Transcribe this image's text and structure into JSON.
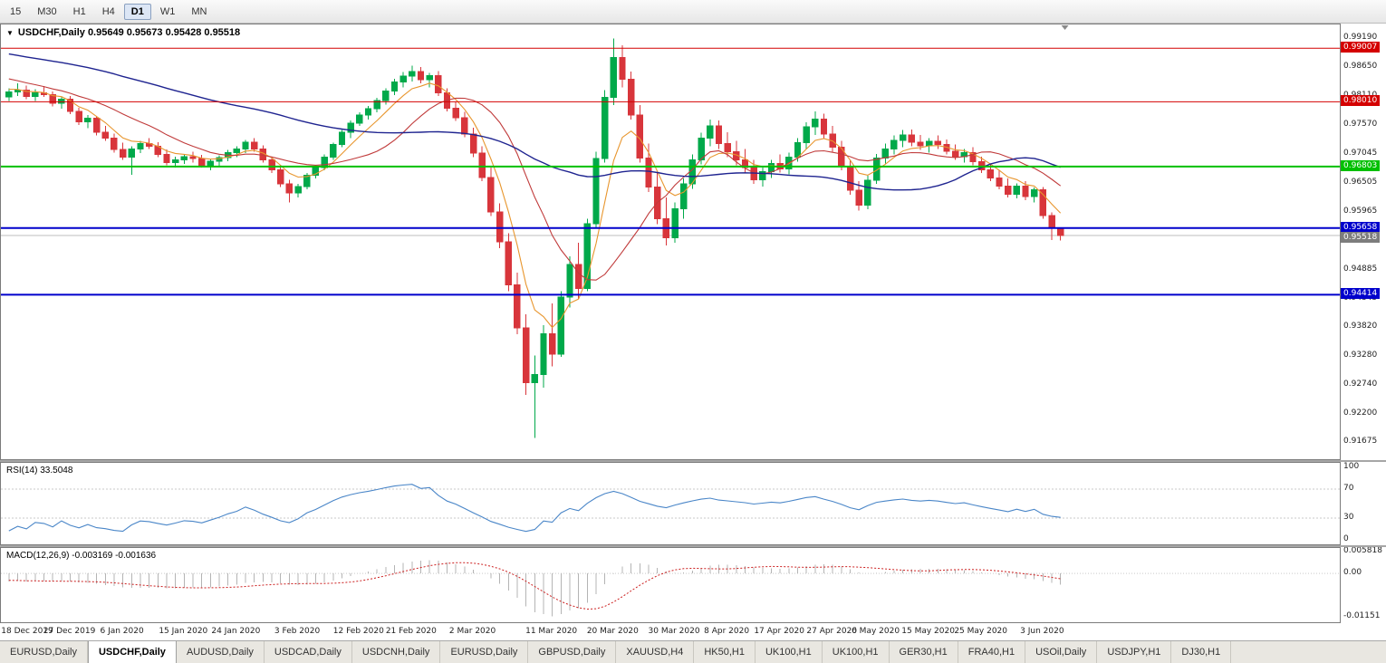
{
  "toolbar": {
    "timeframes": [
      {
        "label": "15",
        "active": false
      },
      {
        "label": "M30",
        "active": false
      },
      {
        "label": "H1",
        "active": false
      },
      {
        "label": "H4",
        "active": false
      },
      {
        "label": "D1",
        "active": true
      },
      {
        "label": "W1",
        "active": false
      },
      {
        "label": "MN",
        "active": false
      }
    ]
  },
  "chart": {
    "header": "USDCHF,Daily 0.95649 0.95673 0.95428 0.95518"
  },
  "rsi": {
    "title": "RSI(14) 33.5048"
  },
  "macd": {
    "title": "MACD(12,26,9) -0.003169 -0.001636"
  },
  "tabs": [
    {
      "label": "EURUSD,Daily",
      "active": false
    },
    {
      "label": "USDCHF,Daily",
      "active": true
    },
    {
      "label": "AUDUSD,Daily",
      "active": false
    },
    {
      "label": "USDCAD,Daily",
      "active": false
    },
    {
      "label": "USDCNH,Daily",
      "active": false
    },
    {
      "label": "EURUSD,Daily",
      "active": false
    },
    {
      "label": "GBPUSD,Daily",
      "active": false
    },
    {
      "label": "XAUUSD,H4",
      "active": false
    },
    {
      "label": "HK50,H1",
      "active": false
    },
    {
      "label": "UK100,H1",
      "active": false
    },
    {
      "label": "UK100,H1",
      "active": false
    },
    {
      "label": "GER30,H1",
      "active": false
    },
    {
      "label": "FRA40,H1",
      "active": false
    },
    {
      "label": "USOil,Daily",
      "active": false
    },
    {
      "label": "USDJPY,H1",
      "active": false
    },
    {
      "label": "DJ30,H1",
      "active": false
    }
  ],
  "chart_data": {
    "type": "candlestick",
    "symbol": "USDCHF",
    "timeframe": "Daily",
    "ohlc_display": {
      "open": "0.95649",
      "high": "0.95673",
      "low": "0.95428",
      "close": "0.95518"
    },
    "price_range": [
      0.9135,
      0.9945
    ],
    "candle_up_color": "#00A94A",
    "candle_down_color": "#D8353B",
    "y_axis_labels": [
      "0.99190",
      "0.98650",
      "0.98110",
      "0.97570",
      "0.97045",
      "0.96505",
      "0.95965",
      "0.95425",
      "0.94885",
      "0.94345",
      "0.93820",
      "0.93280",
      "0.92740",
      "0.92200",
      "0.91675"
    ],
    "x_labels": [
      {
        "i": 0,
        "t": "18 Dec 2019"
      },
      {
        "i": 7,
        "t": "27 Dec 2019"
      },
      {
        "i": 13,
        "t": "6 Jan 2020"
      },
      {
        "i": 20,
        "t": "15 Jan 2020"
      },
      {
        "i": 26,
        "t": "24 Jan 2020"
      },
      {
        "i": 33,
        "t": "3 Feb 2020"
      },
      {
        "i": 40,
        "t": "12 Feb 2020"
      },
      {
        "i": 46,
        "t": "21 Feb 2020"
      },
      {
        "i": 53,
        "t": "2 Mar 2020"
      },
      {
        "i": 62,
        "t": "11 Mar 2020"
      },
      {
        "i": 69,
        "t": "20 Mar 2020"
      },
      {
        "i": 76,
        "t": "30 Mar 2020"
      },
      {
        "i": 82,
        "t": "8 Apr 2020"
      },
      {
        "i": 88,
        "t": "17 Apr 2020"
      },
      {
        "i": 94,
        "t": "27 Apr 2020"
      },
      {
        "i": 99,
        "t": "6 May 2020"
      },
      {
        "i": 105,
        "t": "15 May 2020"
      },
      {
        "i": 111,
        "t": "25 May 2020"
      },
      {
        "i": 118,
        "t": "3 Jun 2020"
      }
    ],
    "hlines": [
      {
        "price": 0.99007,
        "label": "0.99007",
        "color": "#d40000",
        "width": 1
      },
      {
        "price": 0.9801,
        "label": "0.98010",
        "color": "#d40000",
        "width": 1
      },
      {
        "price": 0.96803,
        "label": "0.96803",
        "color": "#00c000",
        "width": 2
      },
      {
        "price": 0.95658,
        "label": "0.95658",
        "color": "#0000cc",
        "width": 2
      },
      {
        "price": 0.94414,
        "label": "0.94414",
        "color": "#0000cc",
        "width": 2
      }
    ],
    "bid_line": {
      "price": 0.95518,
      "label": "0.95518",
      "line_color": "#bcbcbc",
      "badge_color": "#7d7d7d"
    },
    "moving_averages": [
      {
        "period": 6,
        "method": "ema",
        "color": "#e8962e"
      },
      {
        "period": 14,
        "method": "sma",
        "color": "#c03a3a"
      },
      {
        "period": 50,
        "method": "sma",
        "color": "#1f2490"
      }
    ],
    "rsi_indicator": {
      "period": 14,
      "current": 33.5048,
      "color": "#4a86c8",
      "levels": [
        100,
        70,
        30,
        0
      ],
      "level_lines": [
        70,
        30
      ]
    },
    "macd_indicator": {
      "fast": 12,
      "slow": 26,
      "signal": 9,
      "current_macd": -0.003169,
      "current_signal": -0.001636,
      "range": [
        -0.01151,
        0.005818
      ],
      "axis_labels": [
        {
          "v": 0.005818,
          "t": "0.005818"
        },
        {
          "v": 0,
          "t": "0.00"
        },
        {
          "v": -0.01151,
          "t": "-0.01151"
        }
      ],
      "hist_color": "#b4b4b4",
      "signal_color": "#cc2020"
    },
    "candles": [
      [
        0.981,
        0.9826,
        0.9802,
        0.9819
      ],
      [
        0.9819,
        0.9835,
        0.9812,
        0.9823
      ],
      [
        0.9823,
        0.9831,
        0.9806,
        0.9811
      ],
      [
        0.9811,
        0.9824,
        0.9802,
        0.9818
      ],
      [
        0.9818,
        0.983,
        0.981,
        0.9814
      ],
      [
        0.9814,
        0.982,
        0.9792,
        0.9798
      ],
      [
        0.9798,
        0.981,
        0.9788,
        0.9806
      ],
      [
        0.9806,
        0.9812,
        0.9778,
        0.9783
      ],
      [
        0.9783,
        0.979,
        0.9758,
        0.9764
      ],
      [
        0.9764,
        0.9776,
        0.9752,
        0.977
      ],
      [
        0.977,
        0.9774,
        0.9738,
        0.9744
      ],
      [
        0.9744,
        0.9756,
        0.9728,
        0.9733
      ],
      [
        0.9733,
        0.9742,
        0.9706,
        0.9712
      ],
      [
        0.9712,
        0.9725,
        0.9693,
        0.9698
      ],
      [
        0.9698,
        0.9718,
        0.9665,
        0.9713
      ],
      [
        0.9713,
        0.9728,
        0.9705,
        0.9723
      ],
      [
        0.9723,
        0.9733,
        0.9713,
        0.9718
      ],
      [
        0.9718,
        0.9726,
        0.9698,
        0.9703
      ],
      [
        0.9703,
        0.9712,
        0.9683,
        0.9688
      ],
      [
        0.9688,
        0.9699,
        0.9678,
        0.9693
      ],
      [
        0.9693,
        0.9704,
        0.9685,
        0.9699
      ],
      [
        0.9699,
        0.9708,
        0.9688,
        0.9695
      ],
      [
        0.9695,
        0.9702,
        0.9678,
        0.9683
      ],
      [
        0.9683,
        0.9694,
        0.9673,
        0.969
      ],
      [
        0.969,
        0.9701,
        0.9682,
        0.9697
      ],
      [
        0.9697,
        0.9711,
        0.969,
        0.9706
      ],
      [
        0.9706,
        0.9718,
        0.9698,
        0.9713
      ],
      [
        0.9713,
        0.973,
        0.9705,
        0.9726
      ],
      [
        0.9726,
        0.9733,
        0.9708,
        0.9713
      ],
      [
        0.9713,
        0.972,
        0.9688,
        0.9693
      ],
      [
        0.9693,
        0.9699,
        0.9668,
        0.9674
      ],
      [
        0.9674,
        0.9683,
        0.9642,
        0.9648
      ],
      [
        0.9648,
        0.9656,
        0.9613,
        0.9631
      ],
      [
        0.9631,
        0.9648,
        0.9623,
        0.9643
      ],
      [
        0.9643,
        0.9668,
        0.9638,
        0.9664
      ],
      [
        0.9664,
        0.9683,
        0.9658,
        0.9678
      ],
      [
        0.9678,
        0.9703,
        0.9673,
        0.9698
      ],
      [
        0.9698,
        0.9725,
        0.9693,
        0.9721
      ],
      [
        0.9721,
        0.9748,
        0.9716,
        0.9744
      ],
      [
        0.9744,
        0.9766,
        0.9733,
        0.9761
      ],
      [
        0.9761,
        0.9781,
        0.9756,
        0.9776
      ],
      [
        0.9776,
        0.9793,
        0.9768,
        0.9788
      ],
      [
        0.9788,
        0.9808,
        0.9781,
        0.9803
      ],
      [
        0.9803,
        0.9826,
        0.9796,
        0.9821
      ],
      [
        0.9821,
        0.9844,
        0.9813,
        0.9838
      ],
      [
        0.9838,
        0.9856,
        0.9828,
        0.9849
      ],
      [
        0.9849,
        0.9868,
        0.9839,
        0.9857
      ],
      [
        0.9857,
        0.9866,
        0.9835,
        0.9842
      ],
      [
        0.9842,
        0.9855,
        0.9828,
        0.985
      ],
      [
        0.985,
        0.9858,
        0.9812,
        0.9818
      ],
      [
        0.9818,
        0.9826,
        0.9783,
        0.9789
      ],
      [
        0.9789,
        0.9801,
        0.9765,
        0.9771
      ],
      [
        0.9771,
        0.9782,
        0.9735,
        0.9741
      ],
      [
        0.9741,
        0.9753,
        0.9698,
        0.9705
      ],
      [
        0.9705,
        0.9718,
        0.9653,
        0.966
      ],
      [
        0.966,
        0.9678,
        0.9588,
        0.9596
      ],
      [
        0.9596,
        0.9612,
        0.9528,
        0.954
      ],
      [
        0.954,
        0.9556,
        0.9448,
        0.946
      ],
      [
        0.946,
        0.9483,
        0.9368,
        0.938
      ],
      [
        0.938,
        0.9405,
        0.9255,
        0.9278
      ],
      [
        0.9278,
        0.9328,
        0.9175,
        0.9293
      ],
      [
        0.9293,
        0.9385,
        0.9268,
        0.9369
      ],
      [
        0.9369,
        0.9425,
        0.9308,
        0.9331
      ],
      [
        0.9331,
        0.9448,
        0.9326,
        0.9437
      ],
      [
        0.9437,
        0.9513,
        0.9418,
        0.9498
      ],
      [
        0.9498,
        0.9538,
        0.9433,
        0.9453
      ],
      [
        0.9453,
        0.9583,
        0.9448,
        0.9574
      ],
      [
        0.9574,
        0.9708,
        0.9566,
        0.9695
      ],
      [
        0.9695,
        0.9823,
        0.9688,
        0.9809
      ],
      [
        0.9809,
        0.9919,
        0.9795,
        0.9883
      ],
      [
        0.9883,
        0.9906,
        0.9828,
        0.9843
      ],
      [
        0.9843,
        0.9857,
        0.9768,
        0.9776
      ],
      [
        0.9776,
        0.9795,
        0.9688,
        0.9696
      ],
      [
        0.9696,
        0.9723,
        0.9633,
        0.9642
      ],
      [
        0.9642,
        0.9668,
        0.9573,
        0.9583
      ],
      [
        0.9583,
        0.9623,
        0.9533,
        0.9548
      ],
      [
        0.9548,
        0.9613,
        0.9538,
        0.9602
      ],
      [
        0.9602,
        0.9658,
        0.9583,
        0.9648
      ],
      [
        0.9648,
        0.9703,
        0.9639,
        0.9693
      ],
      [
        0.9693,
        0.9743,
        0.9684,
        0.9733
      ],
      [
        0.9733,
        0.9768,
        0.9718,
        0.9756
      ],
      [
        0.9756,
        0.9766,
        0.9713,
        0.9723
      ],
      [
        0.9723,
        0.9744,
        0.9698,
        0.9708
      ],
      [
        0.9708,
        0.9728,
        0.9683,
        0.9693
      ],
      [
        0.9693,
        0.9713,
        0.9668,
        0.9678
      ],
      [
        0.9678,
        0.9693,
        0.9648,
        0.9656
      ],
      [
        0.9656,
        0.9678,
        0.9643,
        0.9671
      ],
      [
        0.9671,
        0.9693,
        0.9659,
        0.9686
      ],
      [
        0.9686,
        0.9703,
        0.9669,
        0.9676
      ],
      [
        0.9676,
        0.9706,
        0.9666,
        0.9698
      ],
      [
        0.9698,
        0.9733,
        0.9689,
        0.9725
      ],
      [
        0.9725,
        0.9763,
        0.9713,
        0.9754
      ],
      [
        0.9754,
        0.9783,
        0.9739,
        0.9769
      ],
      [
        0.9769,
        0.9779,
        0.9733,
        0.9741
      ],
      [
        0.9741,
        0.9756,
        0.9708,
        0.9716
      ],
      [
        0.9716,
        0.9728,
        0.9673,
        0.9681
      ],
      [
        0.9681,
        0.9693,
        0.9628,
        0.9636
      ],
      [
        0.9636,
        0.9653,
        0.9598,
        0.9608
      ],
      [
        0.9608,
        0.9663,
        0.9601,
        0.9655
      ],
      [
        0.9655,
        0.9704,
        0.9648,
        0.9696
      ],
      [
        0.9696,
        0.9723,
        0.9686,
        0.9713
      ],
      [
        0.9713,
        0.9738,
        0.9703,
        0.9729
      ],
      [
        0.9729,
        0.9748,
        0.9716,
        0.9739
      ],
      [
        0.9739,
        0.9749,
        0.9718,
        0.9726
      ],
      [
        0.9726,
        0.9739,
        0.9711,
        0.9719
      ],
      [
        0.9719,
        0.9733,
        0.9706,
        0.9727
      ],
      [
        0.9727,
        0.9738,
        0.9713,
        0.9721
      ],
      [
        0.9721,
        0.9731,
        0.9703,
        0.9709
      ],
      [
        0.9709,
        0.9721,
        0.9693,
        0.9699
      ],
      [
        0.9699,
        0.9713,
        0.9688,
        0.9706
      ],
      [
        0.9706,
        0.9716,
        0.9683,
        0.9689
      ],
      [
        0.9689,
        0.9699,
        0.9668,
        0.9674
      ],
      [
        0.9674,
        0.9686,
        0.9653,
        0.9659
      ],
      [
        0.9659,
        0.9673,
        0.9638,
        0.9644
      ],
      [
        0.9644,
        0.9658,
        0.9623,
        0.9629
      ],
      [
        0.9629,
        0.9649,
        0.9621,
        0.9644
      ],
      [
        0.9644,
        0.9653,
        0.9618,
        0.9624
      ],
      [
        0.9624,
        0.9641,
        0.9613,
        0.9637
      ],
      [
        0.9637,
        0.9642,
        0.9583,
        0.9589
      ],
      [
        0.9589,
        0.9595,
        0.9543,
        0.9565
      ],
      [
        0.95649,
        0.95673,
        0.95428,
        0.95518
      ]
    ]
  }
}
